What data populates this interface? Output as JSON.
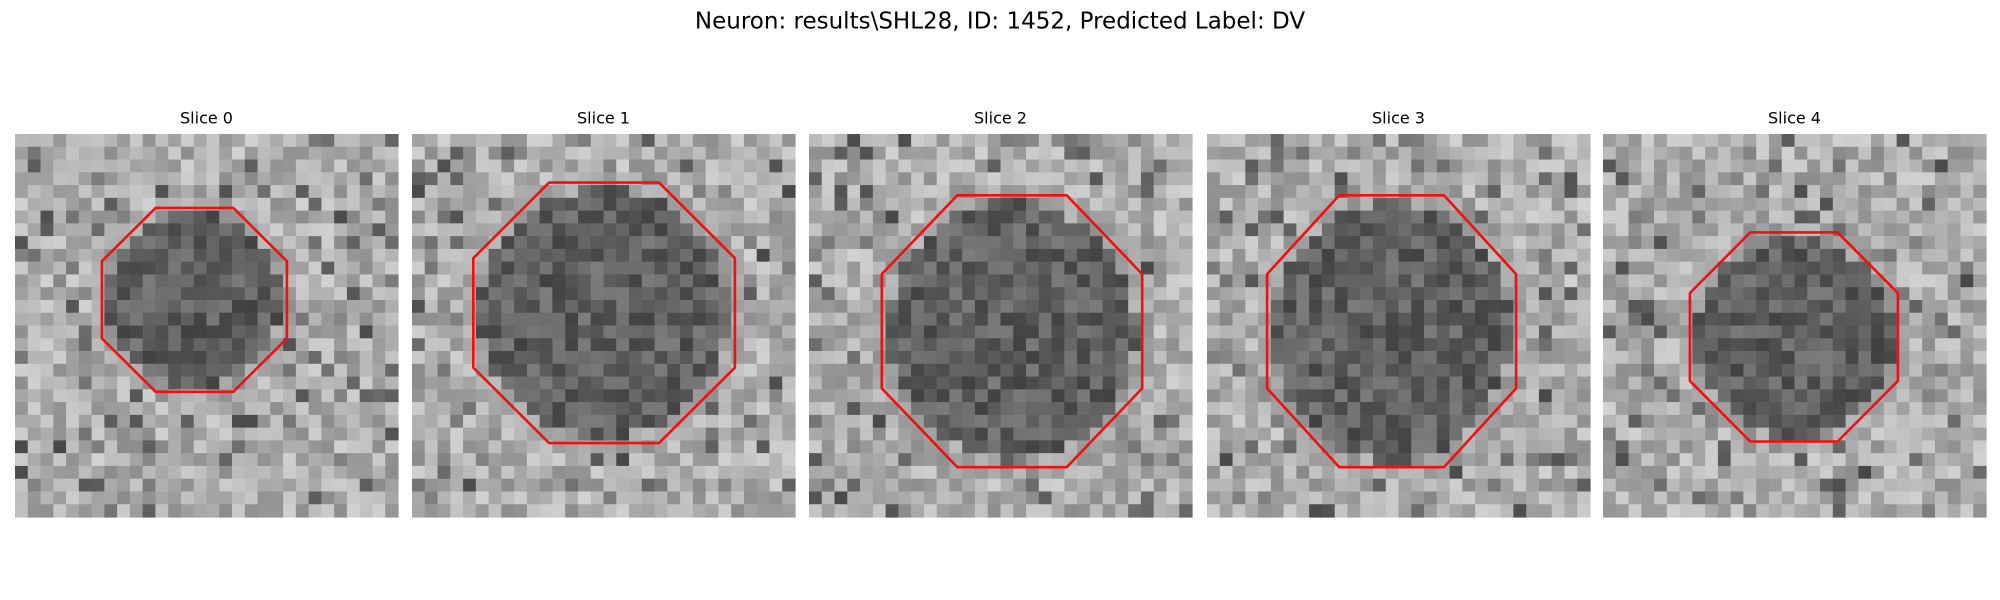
{
  "title": "Neuron: results\\SHL28, ID: 1452, Predicted Label: DV",
  "panels": [
    {
      "title": "Slice 0"
    },
    {
      "title": "Slice 1"
    },
    {
      "title": "Slice 2"
    },
    {
      "title": "Slice 3"
    },
    {
      "title": "Slice 4"
    }
  ]
}
